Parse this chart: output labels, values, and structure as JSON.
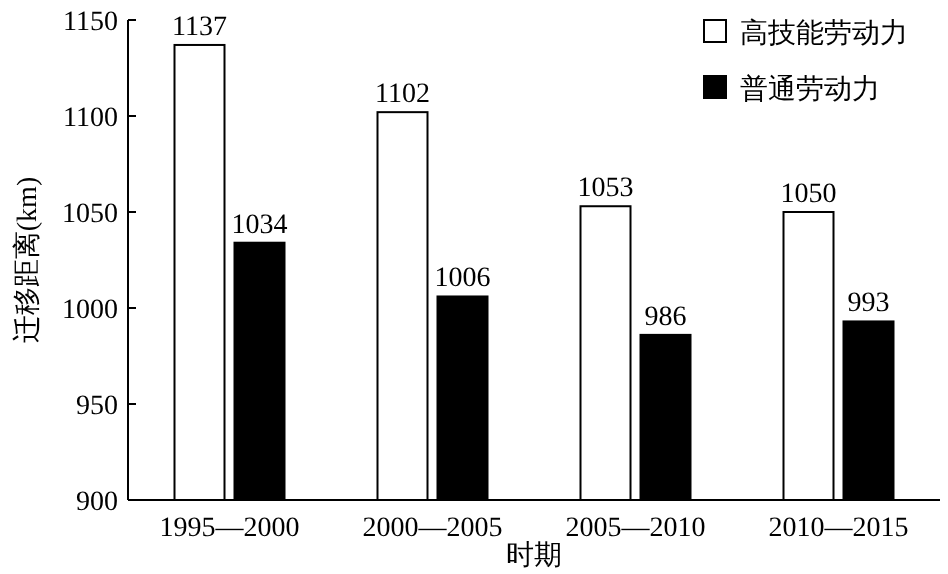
{
  "chart_data": {
    "type": "bar",
    "categories": [
      "1995—2000",
      "2000—2005",
      "2005—2010",
      "2010—2015"
    ],
    "series": [
      {
        "name": "高技能劳动力",
        "color": "#ffffff",
        "values": [
          1137,
          1102,
          1053,
          1050
        ]
      },
      {
        "name": "普通劳动力",
        "color": "#000000",
        "values": [
          1034,
          1006,
          986,
          993
        ]
      }
    ],
    "xlabel": "时期",
    "ylabel": "迁移距离(km)",
    "ylim": [
      900,
      1150
    ],
    "yticks": [
      900,
      950,
      1000,
      1050,
      1100,
      1150
    ],
    "data_labels": true,
    "legend": "top right"
  }
}
